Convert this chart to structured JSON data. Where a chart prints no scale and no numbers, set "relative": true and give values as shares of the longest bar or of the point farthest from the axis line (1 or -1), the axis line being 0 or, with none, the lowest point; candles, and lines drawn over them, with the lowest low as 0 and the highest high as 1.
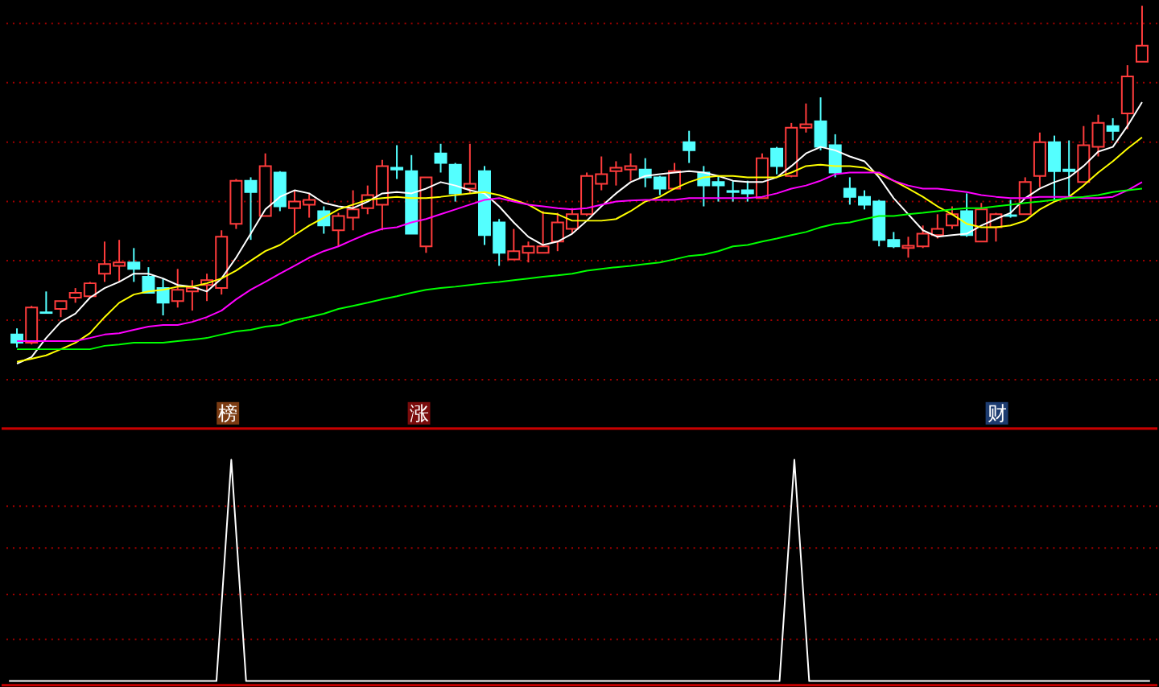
{
  "chart_data": [
    {
      "type": "candlestick",
      "relative": true,
      "categories": [
        null,
        null,
        null,
        null,
        null,
        null,
        null,
        null,
        null,
        null,
        null,
        null,
        null,
        null,
        null,
        null,
        null,
        null,
        null,
        null,
        null,
        null,
        null,
        null,
        null,
        null,
        null,
        null,
        null,
        null,
        null,
        null,
        null,
        null,
        null,
        null,
        null,
        null,
        null,
        null,
        null,
        null,
        null,
        null,
        null,
        null,
        null,
        null,
        null,
        null,
        null,
        null,
        null,
        null,
        null,
        null,
        null,
        null,
        null,
        null,
        null,
        null,
        null,
        null,
        null,
        null,
        null,
        null,
        null,
        null,
        null,
        null,
        null,
        null,
        null,
        null,
        null,
        null
      ],
      "ohlc": [
        [
          0.038,
          0.056,
          0,
          0.014
        ],
        [
          0.014,
          0.122,
          0.009,
          0.117
        ],
        [
          0.103,
          0.164,
          0.099,
          0.101
        ],
        [
          0.113,
          0.136,
          0.089,
          0.136
        ],
        [
          0.146,
          0.174,
          0.131,
          0.16
        ],
        [
          0.15,
          0.192,
          0.146,
          0.188
        ],
        [
          0.216,
          0.31,
          0.192,
          0.244
        ],
        [
          0.239,
          0.315,
          0.192,
          0.249
        ],
        [
          0.249,
          0.291,
          0.192,
          0.23
        ],
        [
          0.207,
          0.235,
          0.16,
          0.16
        ],
        [
          0.174,
          0.202,
          0.094,
          0.131
        ],
        [
          0.136,
          0.23,
          0.117,
          0.169
        ],
        [
          0.164,
          0.197,
          0.108,
          0.174
        ],
        [
          0.183,
          0.216,
          0.136,
          0.197
        ],
        [
          0.174,
          0.343,
          0.155,
          0.324
        ],
        [
          0.362,
          0.493,
          0.347,
          0.488
        ],
        [
          0.488,
          0.498,
          0.315,
          0.455
        ],
        [
          0.385,
          0.568,
          0.385,
          0.531
        ],
        [
          0.512,
          0.516,
          0.399,
          0.413
        ],
        [
          0.408,
          0.46,
          0.333,
          0.427
        ],
        [
          0.418,
          0.451,
          0.38,
          0.432
        ],
        [
          0.399,
          0.413,
          0.333,
          0.357
        ],
        [
          0.343,
          0.394,
          0.296,
          0.385
        ],
        [
          0.38,
          0.46,
          0.343,
          0.404
        ],
        [
          0.408,
          0.474,
          0.39,
          0.446
        ],
        [
          0.418,
          0.549,
          0.343,
          0.531
        ],
        [
          0.526,
          0.592,
          0.493,
          0.521
        ],
        [
          0.516,
          0.563,
          0.333,
          0.333
        ],
        [
          0.296,
          0.498,
          0.277,
          0.498
        ],
        [
          0.568,
          0.596,
          0.512,
          0.54
        ],
        [
          0.535,
          0.54,
          0.427,
          0.451
        ],
        [
          0.465,
          0.596,
          0.451,
          0.479
        ],
        [
          0.516,
          0.531,
          0.3,
          0.329
        ],
        [
          0.366,
          0.376,
          0.239,
          0.277
        ],
        [
          0.258,
          0.347,
          0.258,
          0.282
        ],
        [
          0.277,
          0.31,
          0.249,
          0.296
        ],
        [
          0.277,
          0.399,
          0.277,
          0.296
        ],
        [
          0.31,
          0.394,
          0.282,
          0.366
        ],
        [
          0.347,
          0.408,
          0.333,
          0.39
        ],
        [
          0.39,
          0.512,
          0.385,
          0.502
        ],
        [
          0.479,
          0.559,
          0.46,
          0.507
        ],
        [
          0.516,
          0.545,
          0.474,
          0.526
        ],
        [
          0.521,
          0.568,
          0.488,
          0.531
        ],
        [
          0.521,
          0.554,
          0.469,
          0.498
        ],
        [
          0.498,
          0.502,
          0.446,
          0.465
        ],
        [
          0.465,
          0.54,
          0.465,
          0.516
        ],
        [
          0.601,
          0.634,
          0.54,
          0.577
        ],
        [
          0.512,
          0.531,
          0.413,
          0.474
        ],
        [
          0.484,
          0.502,
          0.427,
          0.474
        ],
        [
          0.458,
          0.488,
          0.427,
          0.455
        ],
        [
          0.46,
          0.488,
          0.427,
          0.451
        ],
        [
          0.437,
          0.568,
          0.437,
          0.554
        ],
        [
          0.582,
          0.587,
          0.507,
          0.531
        ],
        [
          0.502,
          0.657,
          0.498,
          0.643
        ],
        [
          0.643,
          0.714,
          0.629,
          0.653
        ],
        [
          0.662,
          0.732,
          0.577,
          0.587
        ],
        [
          0.592,
          0.624,
          0.498,
          0.512
        ],
        [
          0.465,
          0.498,
          0.418,
          0.441
        ],
        [
          0.441,
          0.46,
          0.404,
          0.418
        ],
        [
          0.427,
          0.432,
          0.296,
          0.315
        ],
        [
          0.315,
          0.338,
          0.291,
          0.296
        ],
        [
          0.291,
          0.324,
          0.263,
          0.298
        ],
        [
          0.296,
          0.357,
          0.291,
          0.333
        ],
        [
          0.329,
          0.39,
          0.319,
          0.347
        ],
        [
          0.357,
          0.413,
          0.347,
          0.39
        ],
        [
          0.399,
          0.451,
          0.324,
          0.329
        ],
        [
          0.31,
          0.423,
          0.31,
          0.404
        ],
        [
          0.352,
          0.394,
          0.31,
          0.39
        ],
        [
          0.387,
          0.432,
          0.38,
          0.385
        ],
        [
          0.39,
          0.498,
          0.39,
          0.484
        ],
        [
          0.502,
          0.629,
          0.469,
          0.601
        ],
        [
          0.601,
          0.62,
          0.432,
          0.516
        ],
        [
          0.521,
          0.606,
          0.437,
          0.516
        ],
        [
          0.484,
          0.648,
          0.484,
          0.592
        ],
        [
          0.587,
          0.681,
          0.559,
          0.657
        ],
        [
          0.648,
          0.671,
          0.606,
          0.634
        ],
        [
          0.685,
          0.826,
          0.639,
          0.793
        ],
        [
          0.836,
          1,
          0.836,
          0.883
        ]
      ],
      "colors": [
        "#54ffff",
        "#ff3c3c",
        "#54ffff",
        "#ff3c3c",
        "#ff3c3c",
        "#ff3c3c",
        "#ff3c3c",
        "#ff3c3c",
        "#54ffff",
        "#54ffff",
        "#54ffff",
        "#ff3c3c",
        "#ff3c3c",
        "#ff3c3c",
        "#ff3c3c",
        "#ff3c3c",
        "#54ffff",
        "#ff3c3c",
        "#54ffff",
        "#ff3c3c",
        "#ff3c3c",
        "#54ffff",
        "#ff3c3c",
        "#ff3c3c",
        "#ff3c3c",
        "#ff3c3c",
        "#54ffff",
        "#54ffff",
        "#ff3c3c",
        "#54ffff",
        "#54ffff",
        "#ff3c3c",
        "#54ffff",
        "#54ffff",
        "#ff3c3c",
        "#ff3c3c",
        "#ff3c3c",
        "#ff3c3c",
        "#ff3c3c",
        "#ff3c3c",
        "#ff3c3c",
        "#ff3c3c",
        "#ff3c3c",
        "#54ffff",
        "#54ffff",
        "#ff3c3c",
        "#54ffff",
        "#54ffff",
        "#54ffff",
        "#54ffff",
        "#54ffff",
        "#ff3c3c",
        "#54ffff",
        "#ff3c3c",
        "#ff3c3c",
        "#54ffff",
        "#54ffff",
        "#54ffff",
        "#54ffff",
        "#54ffff",
        "#54ffff",
        "#ff3c3c",
        "#ff3c3c",
        "#ff3c3c",
        "#ff3c3c",
        "#54ffff",
        "#ff3c3c",
        "#ff3c3c",
        "#54ffff",
        "#ff3c3c",
        "#ff3c3c",
        "#54ffff",
        "#54ffff",
        "#ff3c3c",
        "#ff3c3c",
        "#54ffff",
        "#ff3c3c",
        "#ff3c3c"
      ],
      "series": [
        {
          "type": "line",
          "color": "#ffffff",
          "values": [
            -0.047,
            -0.028,
            0.028,
            0.075,
            0.099,
            0.146,
            0.174,
            0.192,
            0.216,
            0.216,
            0.202,
            0.183,
            0.178,
            0.164,
            0.202,
            0.263,
            0.333,
            0.404,
            0.441,
            0.46,
            0.451,
            0.423,
            0.413,
            0.408,
            0.427,
            0.451,
            0.455,
            0.451,
            0.465,
            0.484,
            0.474,
            0.46,
            0.451,
            0.413,
            0.366,
            0.324,
            0.3,
            0.31,
            0.333,
            0.371,
            0.413,
            0.451,
            0.484,
            0.502,
            0.507,
            0.512,
            0.516,
            0.512,
            0.502,
            0.488,
            0.484,
            0.484,
            0.498,
            0.531,
            0.568,
            0.587,
            0.577,
            0.559,
            0.545,
            0.498,
            0.437,
            0.39,
            0.343,
            0.324,
            0.329,
            0.333,
            0.357,
            0.376,
            0.394,
            0.437,
            0.465,
            0.484,
            0.498,
            0.531,
            0.573,
            0.587,
            0.648,
            0.718
          ]
        },
        {
          "type": "line",
          "color": "#ffff00",
          "values": [
            -0.042,
            -0.033,
            -0.023,
            -0.005,
            0.014,
            0.042,
            0.089,
            0.131,
            0.155,
            0.164,
            0.169,
            0.178,
            0.178,
            0.188,
            0.202,
            0.225,
            0.254,
            0.282,
            0.3,
            0.329,
            0.357,
            0.38,
            0.404,
            0.418,
            0.432,
            0.437,
            0.441,
            0.437,
            0.437,
            0.441,
            0.446,
            0.451,
            0.455,
            0.446,
            0.432,
            0.418,
            0.394,
            0.39,
            0.371,
            0.371,
            0.371,
            0.376,
            0.399,
            0.427,
            0.441,
            0.465,
            0.484,
            0.498,
            0.502,
            0.502,
            0.498,
            0.498,
            0.498,
            0.512,
            0.531,
            0.535,
            0.531,
            0.531,
            0.526,
            0.507,
            0.488,
            0.465,
            0.441,
            0.413,
            0.39,
            0.362,
            0.352,
            0.352,
            0.357,
            0.371,
            0.404,
            0.427,
            0.441,
            0.474,
            0.512,
            0.545,
            0.582,
            0.615
          ]
        },
        {
          "type": "line",
          "color": "#ff00ff",
          "values": [
            0.019,
            0.019,
            0.019,
            0.019,
            0.019,
            0.028,
            0.038,
            0.042,
            0.052,
            0.061,
            0.066,
            0.066,
            0.075,
            0.089,
            0.108,
            0.141,
            0.169,
            0.192,
            0.216,
            0.239,
            0.263,
            0.282,
            0.296,
            0.315,
            0.333,
            0.347,
            0.352,
            0.366,
            0.376,
            0.39,
            0.404,
            0.418,
            0.432,
            0.437,
            0.427,
            0.418,
            0.413,
            0.408,
            0.404,
            0.408,
            0.418,
            0.427,
            0.43,
            0.432,
            0.432,
            0.432,
            0.437,
            0.437,
            0.437,
            0.437,
            0.437,
            0.441,
            0.451,
            0.465,
            0.474,
            0.488,
            0.507,
            0.512,
            0.512,
            0.512,
            0.488,
            0.474,
            0.465,
            0.465,
            0.46,
            0.455,
            0.446,
            0.441,
            0.437,
            0.437,
            0.441,
            0.441,
            0.441,
            0.437,
            0.437,
            0.441,
            0.46,
            0.484
          ]
        },
        {
          "type": "line",
          "color": "#00ff00",
          "values": [
            -0.005,
            -0.005,
            -0.005,
            -0.005,
            -0.005,
            -0.005,
            0.005,
            0.009,
            0.014,
            0.014,
            0.014,
            0.019,
            0.023,
            0.028,
            0.038,
            0.047,
            0.052,
            0.061,
            0.066,
            0.08,
            0.089,
            0.099,
            0.113,
            0.122,
            0.131,
            0.141,
            0.15,
            0.16,
            0.169,
            0.174,
            0.178,
            0.183,
            0.188,
            0.192,
            0.197,
            0.202,
            0.207,
            0.211,
            0.216,
            0.225,
            0.23,
            0.235,
            0.239,
            0.244,
            0.249,
            0.258,
            0.268,
            0.272,
            0.282,
            0.296,
            0.3,
            0.31,
            0.319,
            0.329,
            0.338,
            0.352,
            0.362,
            0.366,
            0.376,
            0.385,
            0.385,
            0.39,
            0.394,
            0.399,
            0.404,
            0.408,
            0.408,
            0.413,
            0.418,
            0.423,
            0.427,
            0.432,
            0.437,
            0.441,
            0.446,
            0.455,
            0.46,
            0.465
          ]
        }
      ],
      "ref_lines": [
        {
          "axis": "y",
          "value": 0.948,
          "color": "#a00000",
          "line_style": "dotted"
        },
        {
          "axis": "y",
          "value": 0.775,
          "color": "#a00000",
          "line_style": "dotted"
        },
        {
          "axis": "y",
          "value": 0.601,
          "color": "#a00000",
          "line_style": "dotted"
        },
        {
          "axis": "y",
          "value": 0.427,
          "color": "#a00000",
          "line_style": "dotted"
        },
        {
          "axis": "y",
          "value": 0.254,
          "color": "#a00000",
          "line_style": "dotted"
        },
        {
          "axis": "y",
          "value": 0.08,
          "color": "#a00000",
          "line_style": "dotted"
        },
        {
          "axis": "y",
          "value": -0.094,
          "color": "#a00000",
          "line_style": "dotted"
        }
      ],
      "annotations": [
        "榜",
        "涨",
        "财"
      ]
    },
    {
      "type": "line",
      "relative": true,
      "color": "#ffffff",
      "categories": [
        null,
        null,
        null,
        null,
        null,
        null,
        null,
        null,
        null,
        null,
        null,
        null,
        null,
        null,
        null,
        null,
        null,
        null,
        null,
        null,
        null,
        null,
        null,
        null,
        null,
        null,
        null,
        null,
        null,
        null,
        null,
        null,
        null,
        null,
        null,
        null,
        null,
        null,
        null,
        null,
        null,
        null,
        null,
        null,
        null,
        null,
        null,
        null,
        null,
        null,
        null,
        null,
        null,
        null,
        null,
        null,
        null,
        null,
        null,
        null,
        null,
        null,
        null,
        null,
        null,
        null,
        null,
        null,
        null,
        null,
        null,
        null,
        null,
        null,
        null,
        null,
        null,
        null
      ],
      "values": [
        0,
        0,
        0,
        0,
        0,
        0,
        0,
        0,
        0,
        0,
        0,
        0,
        0,
        0,
        0,
        1,
        0,
        0,
        0,
        0,
        0,
        0,
        0,
        0,
        0,
        0,
        0,
        0,
        0,
        0,
        0,
        0,
        0,
        0,
        0,
        0,
        0,
        0,
        0,
        0,
        0,
        0,
        0,
        0,
        0,
        0,
        0,
        0,
        0,
        0,
        0,
        0,
        0,
        1,
        0,
        0,
        0,
        0,
        0,
        0,
        0,
        0,
        0,
        0,
        0,
        0,
        0,
        0,
        0,
        0,
        0,
        0,
        0,
        0,
        0,
        0,
        0,
        0
      ],
      "ref_lines": [
        {
          "axis": "y",
          "value": 0.79,
          "color": "#a00000",
          "line_style": "dotted"
        },
        {
          "axis": "y",
          "value": 0.601,
          "color": "#a00000",
          "line_style": "dotted"
        },
        {
          "axis": "y",
          "value": 0.391,
          "color": "#a00000",
          "line_style": "dotted"
        },
        {
          "axis": "y",
          "value": 0.188,
          "color": "#a00000",
          "line_style": "dotted"
        }
      ]
    }
  ]
}
